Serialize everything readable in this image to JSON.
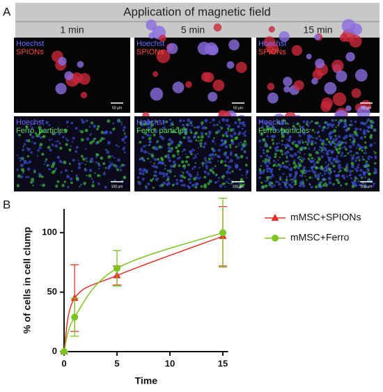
{
  "panel_a": {
    "label": "A",
    "title": "Application of magnetic field",
    "columns": [
      "1 min",
      "5 min",
      "15 min"
    ],
    "rows": [
      {
        "stain": "Hoechst",
        "marker": "SPIONs",
        "scales": [
          "50 µm",
          "50 µm",
          "50 µm"
        ]
      },
      {
        "stain": "Hoechst",
        "marker": "Ferro. particles",
        "scales": [
          "100 µm",
          "100 µm",
          "100 µm"
        ]
      }
    ]
  },
  "panel_b": {
    "label": "B"
  },
  "chart_data": {
    "type": "line",
    "x_label": "Time",
    "y_label": "% of cells in cell clump",
    "x": [
      0,
      1,
      5,
      15
    ],
    "series": [
      {
        "name": "mMSC+SPIONs",
        "color": "#e0322b",
        "marker": "triangle",
        "values": [
          0,
          45,
          64,
          97
        ],
        "errors": [
          0,
          28,
          8,
          25
        ]
      },
      {
        "name": "mMSC+Ferro",
        "color": "#7cc520",
        "marker": "circle",
        "values": [
          0,
          29,
          70,
          100
        ],
        "errors": [
          0,
          16,
          15,
          29
        ]
      }
    ],
    "xlim": [
      0,
      15.5
    ],
    "ylim": [
      0,
      120
    ],
    "xticks": [
      0,
      5,
      10,
      15
    ],
    "yticks": [
      0,
      50,
      100
    ]
  }
}
